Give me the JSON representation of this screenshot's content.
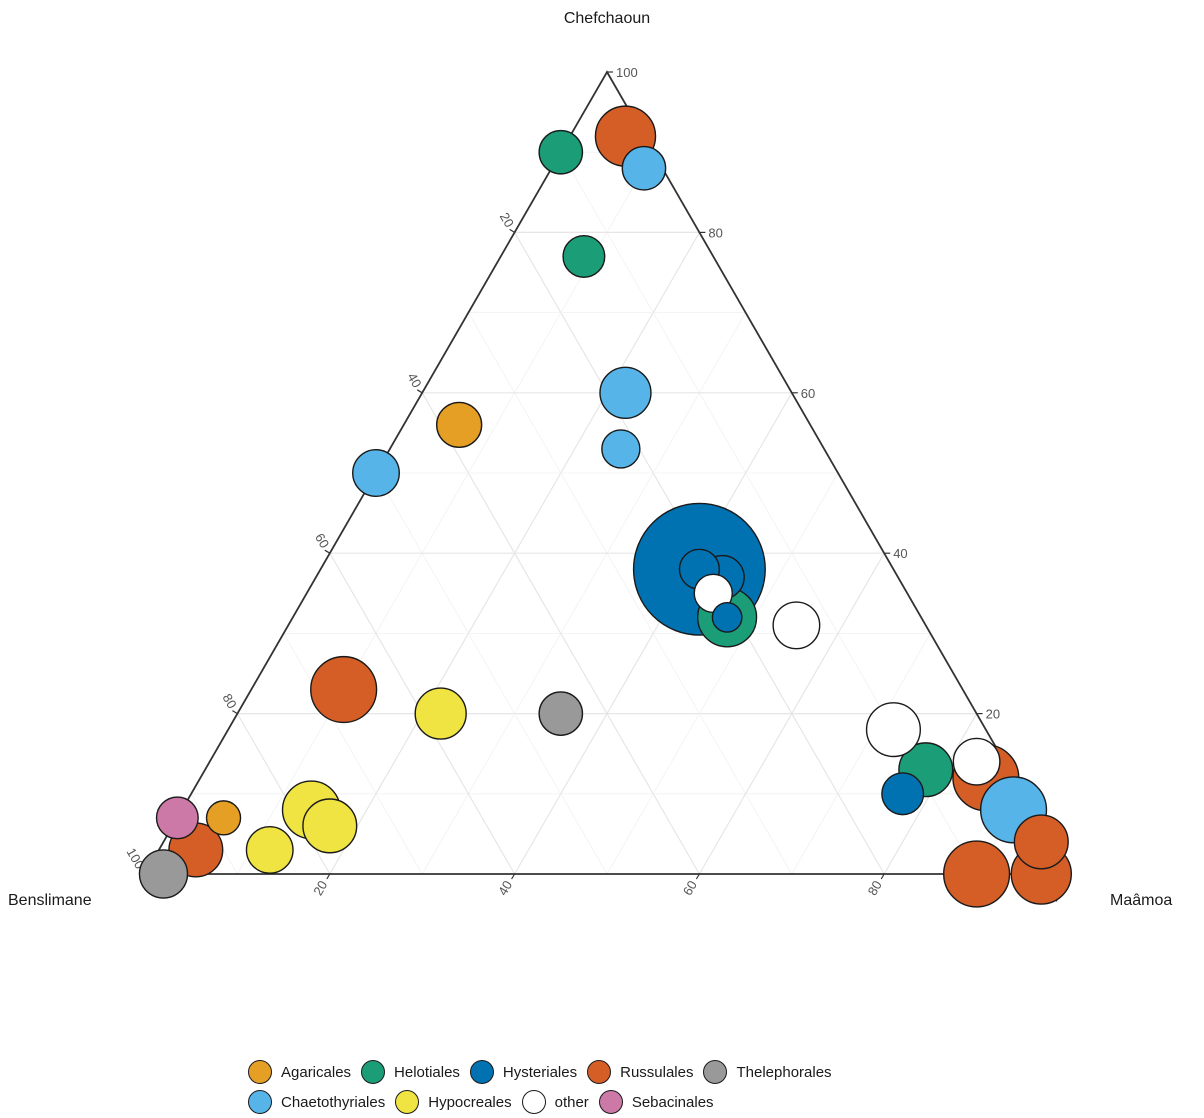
{
  "chart_data": {
    "type": "scatter",
    "subtype": "ternary bubble",
    "axes": {
      "top": "Chefchaoun",
      "left": "Benslimane",
      "right": "Maâmoa"
    },
    "ticks": [
      "20",
      "40",
      "60",
      "80",
      "100"
    ],
    "grid": true,
    "legend_position": "bottom",
    "colors": {
      "Agaricales": "#E69F25",
      "Chaetothyriales": "#56B4E9",
      "Helotiales": "#1B9E77",
      "Hypocreales": "#F0E442",
      "Hysteriales": "#0072B2",
      "other": "#FFFFFF",
      "Russulales": "#D55E27",
      "Sebacinales": "#CC79A7",
      "Thelephorales": "#999999"
    },
    "legend": {
      "rows": [
        [
          "Agaricales",
          "Helotiales",
          "Hysteriales",
          "Russulales",
          "Thelephorales"
        ],
        [
          "Chaetothyriales",
          "Hypocreales",
          "other",
          "Sebacinales"
        ]
      ]
    },
    "points": [
      {
        "order": "Hysteriales",
        "benslimane": 21,
        "maamoa": 41,
        "chefchaoun": 38,
        "size": 12
      },
      {
        "order": "Hysteriales",
        "benslimane": 21,
        "maamoa": 41,
        "chefchaoun": 38,
        "size": 1.1
      },
      {
        "order": "Helotiales",
        "benslimane": 21,
        "maamoa": 47,
        "chefchaoun": 32,
        "size": 2.4
      },
      {
        "order": "Hysteriales",
        "benslimane": 21,
        "maamoa": 47,
        "chefchaoun": 32,
        "size": 0.6
      },
      {
        "order": "other",
        "benslimane": 21,
        "maamoa": 44,
        "chefchaoun": 35,
        "size": 1
      },
      {
        "order": "Russulales",
        "benslimane": 67,
        "maamoa": 10,
        "chefchaoun": 23,
        "size": 3
      },
      {
        "order": "Russulales",
        "benslimane": 10,
        "maamoa": 90,
        "chefchaoun": 0,
        "size": 3
      },
      {
        "order": "Russulales",
        "benslimane": 3,
        "maamoa": 85,
        "chefchaoun": 12,
        "size": 3
      },
      {
        "order": "Russulales",
        "benslimane": 2,
        "maamoa": 6,
        "chefchaoun": 92,
        "size": 2.5
      },
      {
        "order": "Russulales",
        "benslimane": 3,
        "maamoa": 97,
        "chefchaoun": 0,
        "size": 2.5
      },
      {
        "order": "Russulales",
        "benslimane": 1,
        "maamoa": 95,
        "chefchaoun": 4,
        "size": 2
      },
      {
        "order": "Russulales",
        "benslimane": 93,
        "maamoa": 4,
        "chefchaoun": 3,
        "size": 2
      },
      {
        "order": "Chaetothyriales",
        "benslimane": 2,
        "maamoa": 90,
        "chefchaoun": 8,
        "size": 3
      },
      {
        "order": "Chaetothyriales",
        "benslimane": 18,
        "maamoa": 22,
        "chefchaoun": 60,
        "size": 1.8
      },
      {
        "order": "Chaetothyriales",
        "benslimane": 50,
        "maamoa": 0,
        "chefchaoun": 50,
        "size": 1.5
      },
      {
        "order": "Chaetothyriales",
        "benslimane": 2,
        "maamoa": 10,
        "chefchaoun": 88,
        "size": 1.3
      },
      {
        "order": "Chaetothyriales",
        "benslimane": 22,
        "maamoa": 25,
        "chefchaoun": 53,
        "size": 1
      },
      {
        "order": "Helotiales",
        "benslimane": 9,
        "maamoa": 78,
        "chefchaoun": 13,
        "size": 2
      },
      {
        "order": "Helotiales",
        "benslimane": 10,
        "maamoa": 0,
        "chefchaoun": 90,
        "size": 1.3
      },
      {
        "order": "Helotiales",
        "benslimane": 14,
        "maamoa": 9,
        "chefchaoun": 77,
        "size": 1.2
      },
      {
        "order": "Hysteriales",
        "benslimane": 19,
        "maamoa": 44,
        "chefchaoun": 37,
        "size": 1.3
      },
      {
        "order": "Hysteriales",
        "benslimane": 13,
        "maamoa": 77,
        "chefchaoun": 10,
        "size": 1.2
      },
      {
        "order": "Hypocreales",
        "benslimane": 78,
        "maamoa": 14,
        "chefchaoun": 8,
        "size": 2.3
      },
      {
        "order": "Hypocreales",
        "benslimane": 77,
        "maamoa": 17,
        "chefchaoun": 6,
        "size": 2
      },
      {
        "order": "Hypocreales",
        "benslimane": 58,
        "maamoa": 22,
        "chefchaoun": 20,
        "size": 1.8
      },
      {
        "order": "Hypocreales",
        "benslimane": 85,
        "maamoa": 12,
        "chefchaoun": 3,
        "size": 1.5
      },
      {
        "order": "Agaricales",
        "benslimane": 38,
        "maamoa": 6,
        "chefchaoun": 56,
        "size": 1.4
      },
      {
        "order": "Agaricales",
        "benslimane": 88,
        "maamoa": 5,
        "chefchaoun": 7,
        "size": 0.8
      },
      {
        "order": "other",
        "benslimane": 10,
        "maamoa": 72,
        "chefchaoun": 18,
        "size": 2
      },
      {
        "order": "other",
        "benslimane": 14,
        "maamoa": 55,
        "chefchaoun": 31,
        "size": 1.5
      },
      {
        "order": "other",
        "benslimane": 3,
        "maamoa": 83,
        "chefchaoun": 14,
        "size": 1.5
      },
      {
        "order": "Thelephorales",
        "benslimane": 45,
        "maamoa": 35,
        "chefchaoun": 20,
        "size": 1.3
      },
      {
        "order": "Thelephorales",
        "benslimane": 98,
        "maamoa": 2,
        "chefchaoun": 0,
        "size": 1.6
      },
      {
        "order": "Sebacinales",
        "benslimane": 93,
        "maamoa": 0,
        "chefchaoun": 7,
        "size": 1.2
      }
    ]
  },
  "plot": {
    "top_vertex": "607,72",
    "left_vertex": "145,874",
    "right_vertex": "1069,874"
  }
}
